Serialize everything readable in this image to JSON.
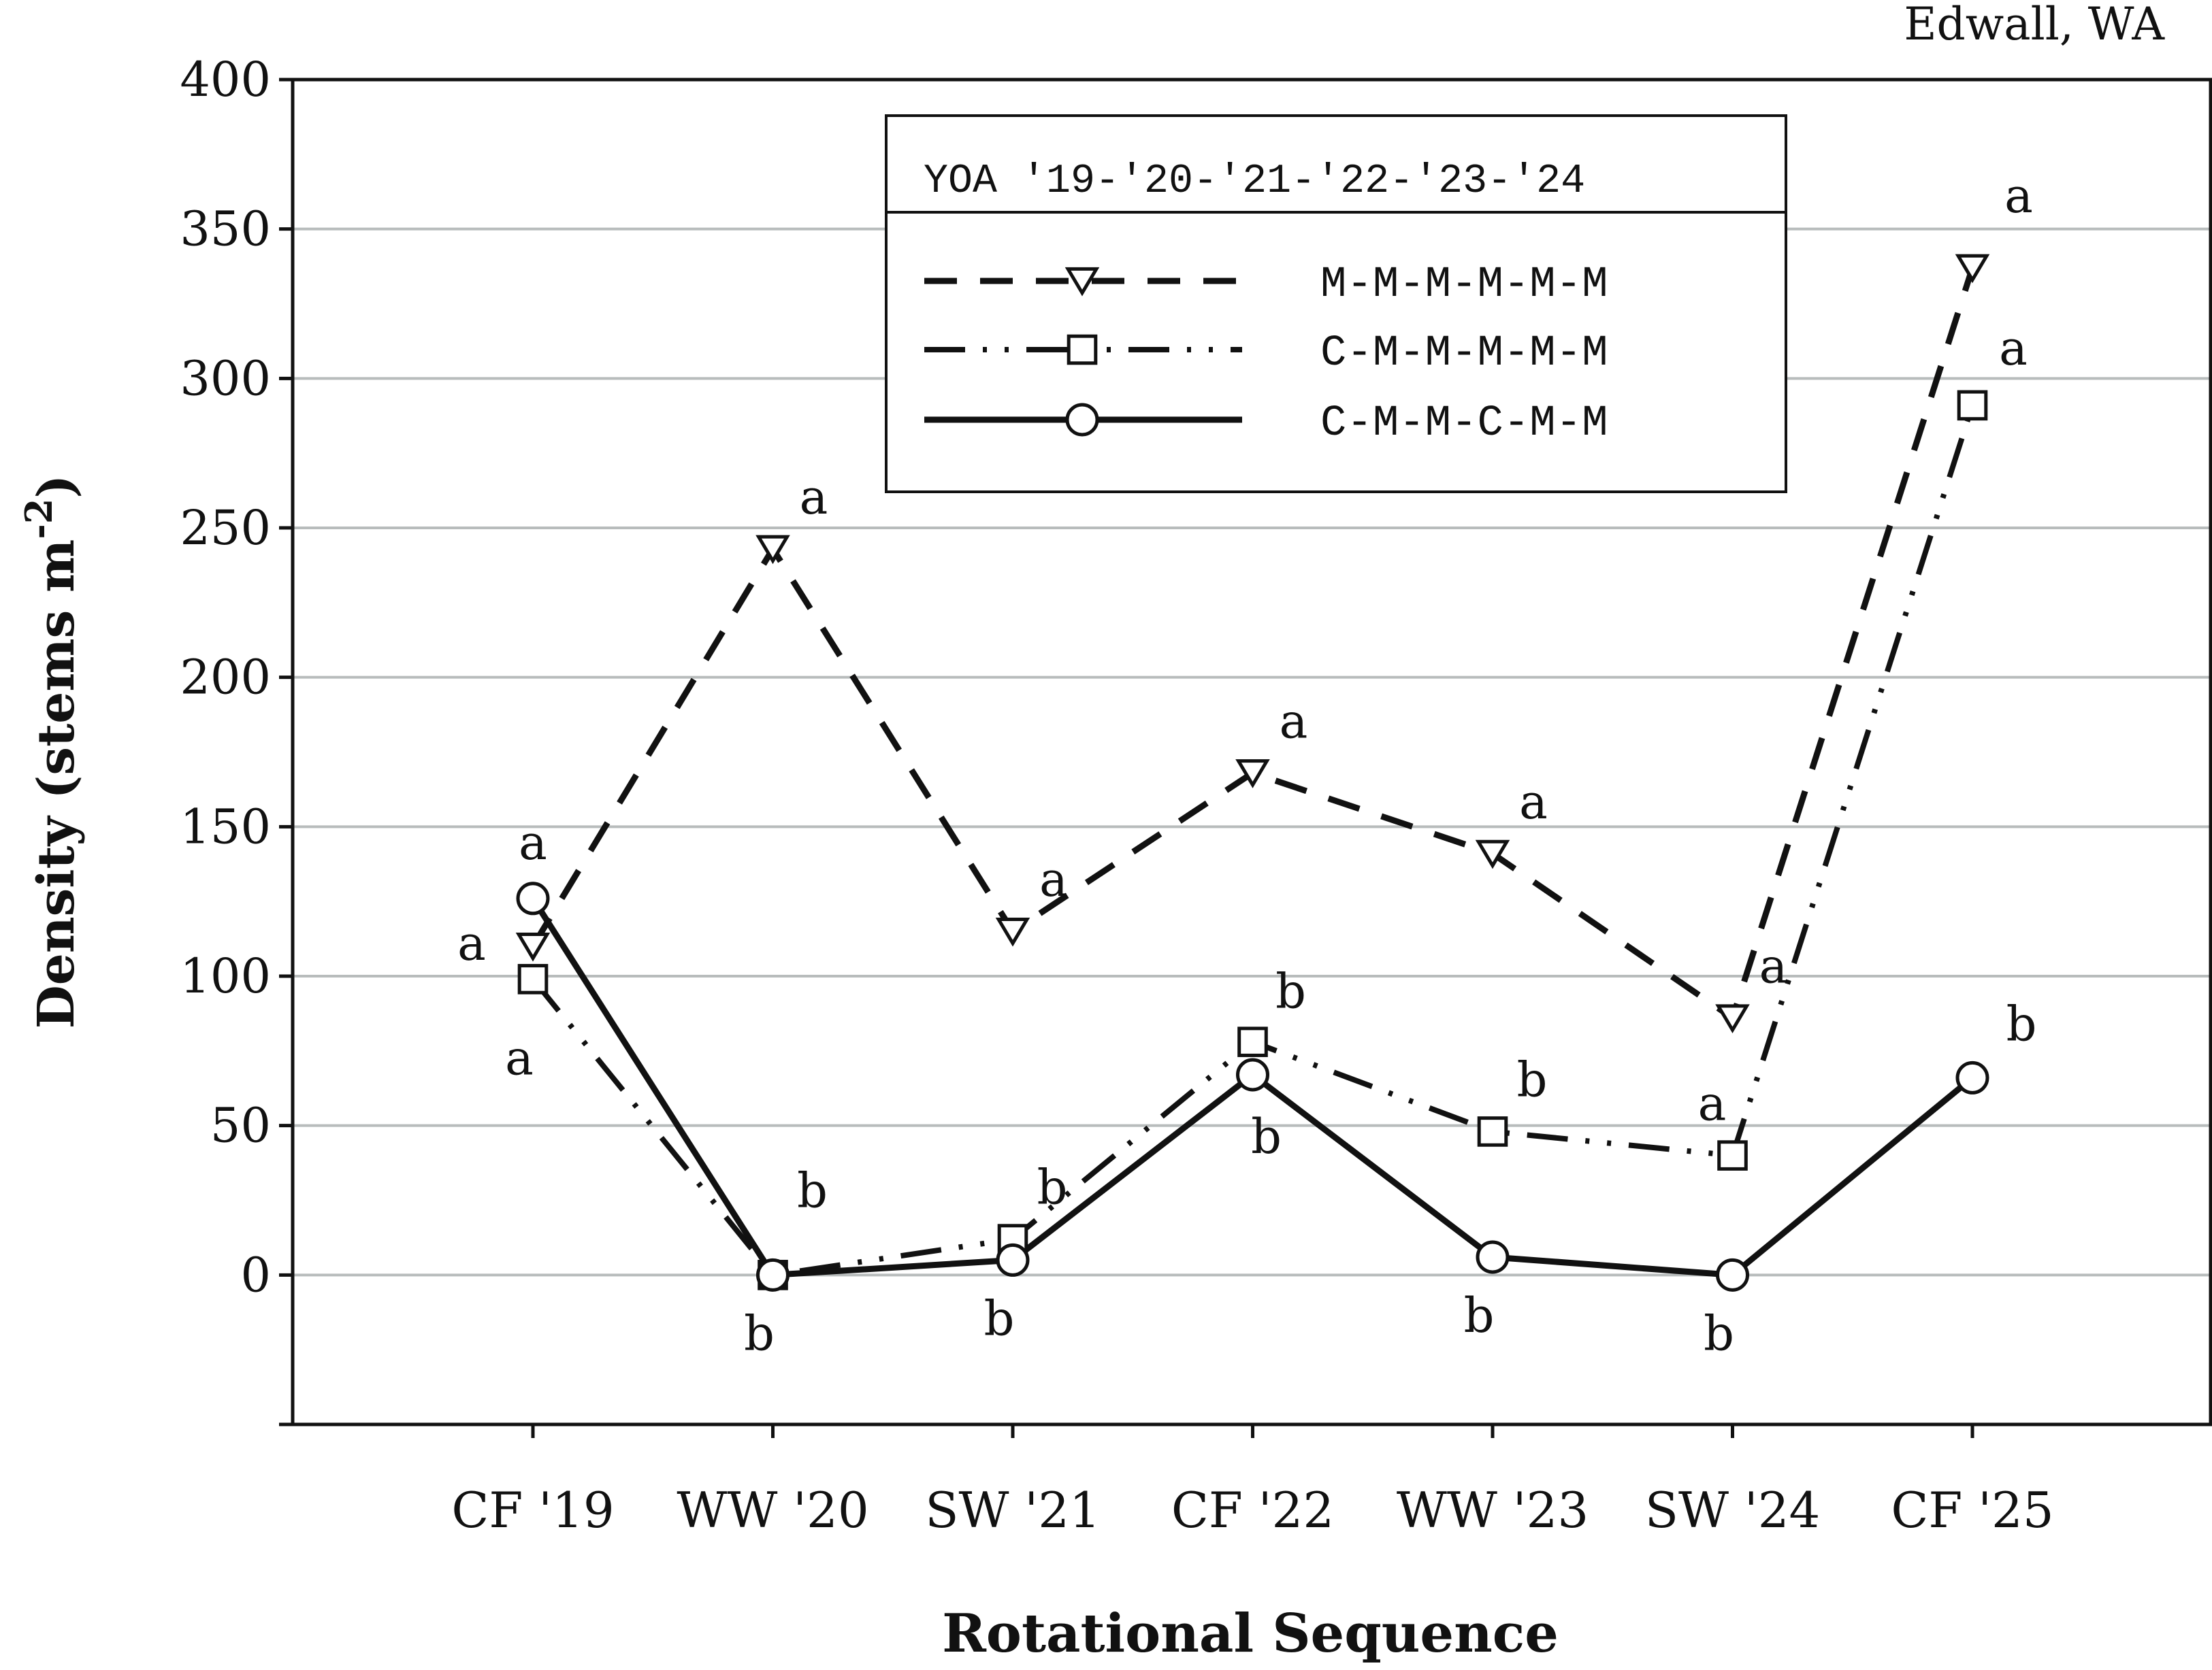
{
  "chart_data": {
    "type": "line",
    "location_label": "Edwall, WA",
    "xlabel": "Rotational Sequence",
    "ylabel": "Density (stems m",
    "ylabel_superscript": "-2",
    "ylabel_close": ")",
    "ylim": [
      -50,
      400
    ],
    "yticks": [
      0,
      50,
      100,
      150,
      200,
      250,
      300,
      350,
      400
    ],
    "grid": true,
    "categories": [
      "CF '19",
      "WW '20",
      "SW '21",
      "CF '22",
      "WW '23",
      "SW '24",
      "CF '25"
    ],
    "legend": {
      "title": "YOA '19-'20-'21-'22-'23-'24",
      "placement": "top-center"
    },
    "series": [
      {
        "name": "M-M-M-M-M-M",
        "marker": "triangle-down",
        "line": "dashed",
        "values": [
          110,
          243,
          115,
          168,
          141,
          86,
          337
        ],
        "letters": [
          "a",
          "a",
          "a",
          "a",
          "a",
          "a",
          "a"
        ]
      },
      {
        "name": "C-M-M-M-M-M",
        "marker": "square",
        "line": "dash-dot-dot",
        "values": [
          99,
          0,
          12,
          78,
          48,
          40,
          291
        ],
        "letters": [
          "a",
          "b",
          "b",
          "b",
          "b",
          "a",
          "a"
        ]
      },
      {
        "name": "C-M-M-C-M-M",
        "marker": "circle",
        "line": "solid",
        "values": [
          126,
          0,
          5,
          67,
          6,
          0,
          66
        ],
        "letters": [
          "a",
          "b",
          "b",
          "b",
          "b",
          "b",
          "b"
        ]
      }
    ]
  }
}
